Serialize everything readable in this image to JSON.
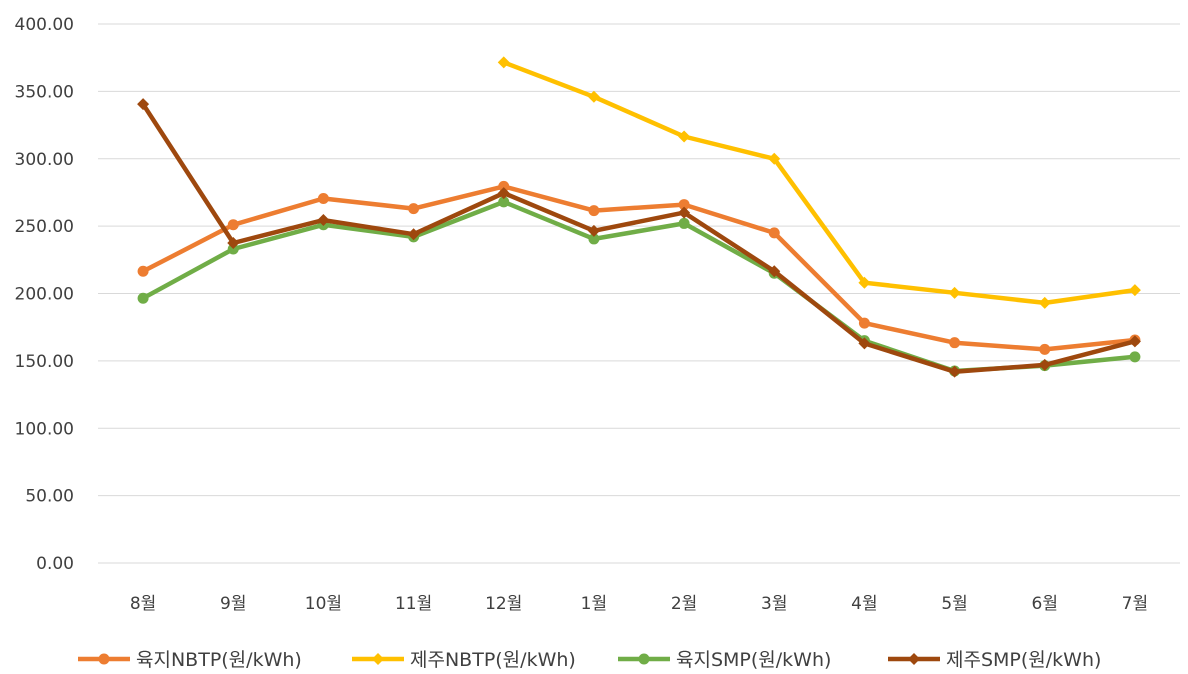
{
  "chart_data": {
    "type": "line",
    "title": "",
    "xlabel": "",
    "ylabel": "",
    "categories": [
      "8월",
      "9월",
      "10월",
      "11월",
      "12월",
      "1월",
      "2월",
      "3월",
      "4월",
      "5월",
      "6월",
      "7월"
    ],
    "ylim": [
      0,
      400
    ],
    "y_ticks": [
      "0.00",
      "50.00",
      "100.00",
      "150.00",
      "200.00",
      "250.00",
      "300.00",
      "350.00",
      "400.00"
    ],
    "grid": "horizontal",
    "legend_position": "bottom",
    "series": [
      {
        "name": "육지NBTP(원/kWh)",
        "color": "#ED7D31",
        "marker": "circle",
        "values": [
          216.5,
          251,
          270.5,
          263,
          279.5,
          261.5,
          266,
          245,
          178,
          163.5,
          158.5,
          165.5
        ]
      },
      {
        "name": "제주NBTP(원/kWh)",
        "color": "#FFC000",
        "marker": "diamond",
        "values": [
          null,
          null,
          null,
          null,
          371.5,
          346,
          316.5,
          300,
          208,
          200.5,
          193,
          202.5
        ]
      },
      {
        "name": "육지SMP(원/kWh)",
        "color": "#70AD47",
        "marker": "circle",
        "values": [
          196.5,
          233,
          251,
          242,
          268,
          240.5,
          252,
          215,
          165,
          142.5,
          146.5,
          153
        ]
      },
      {
        "name": "제주SMP(원/kWh)",
        "color": "#9E480E",
        "marker": "diamond",
        "values": [
          340.5,
          237.5,
          254.5,
          244,
          274.5,
          246.5,
          260,
          216.5,
          163,
          142,
          147,
          164.5
        ]
      }
    ]
  }
}
